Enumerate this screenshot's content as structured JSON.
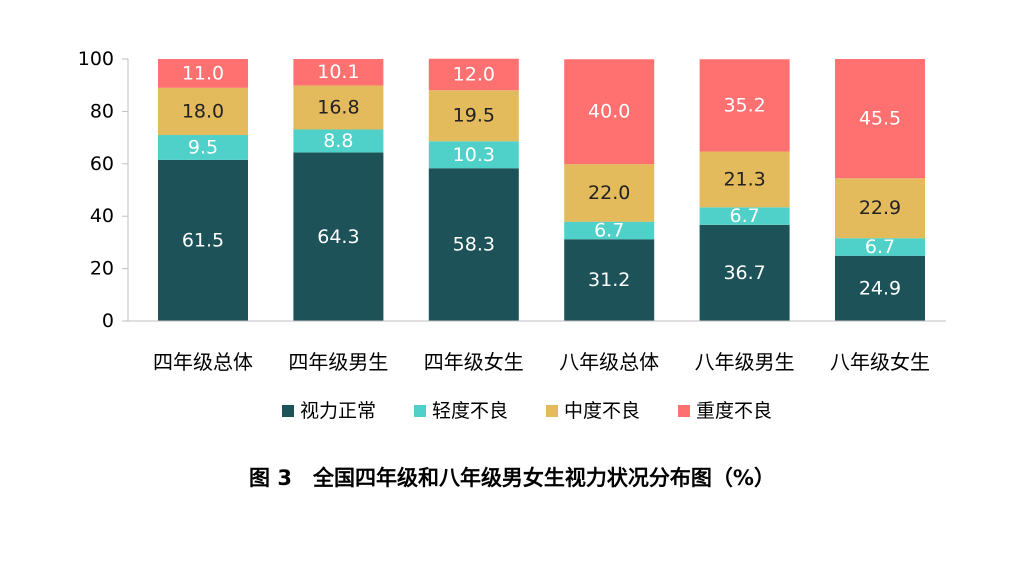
{
  "chart_data": {
    "type": "bar",
    "stacked": true,
    "title": "图 3　全国四年级和八年级男女生视力状况分布图（%）",
    "categories": [
      "四年级总体",
      "四年级男生",
      "四年级女生",
      "八年级总体",
      "八年级男生",
      "八年级女生"
    ],
    "ylim": [
      0,
      100
    ],
    "yticks": [
      0,
      20,
      40,
      60,
      80,
      100
    ],
    "legend_position": "bottom",
    "series": [
      {
        "name": "视力正常",
        "color": "#1d5259",
        "label_color": "#ffffff",
        "values": [
          61.5,
          64.3,
          58.3,
          31.2,
          36.7,
          24.9
        ]
      },
      {
        "name": "轻度不良",
        "color": "#4fd0c8",
        "label_color": "#ffffff",
        "values": [
          9.5,
          8.8,
          10.3,
          6.7,
          6.7,
          6.7
        ]
      },
      {
        "name": "中度不良",
        "color": "#e3ba5c",
        "label_color": "#222222",
        "values": [
          18.0,
          16.8,
          19.5,
          22.0,
          21.3,
          22.9
        ]
      },
      {
        "name": "重度不良",
        "color": "#ff7070",
        "label_color": "#ffffff",
        "values": [
          11.0,
          10.1,
          12.0,
          40.0,
          35.2,
          45.5
        ]
      }
    ]
  }
}
